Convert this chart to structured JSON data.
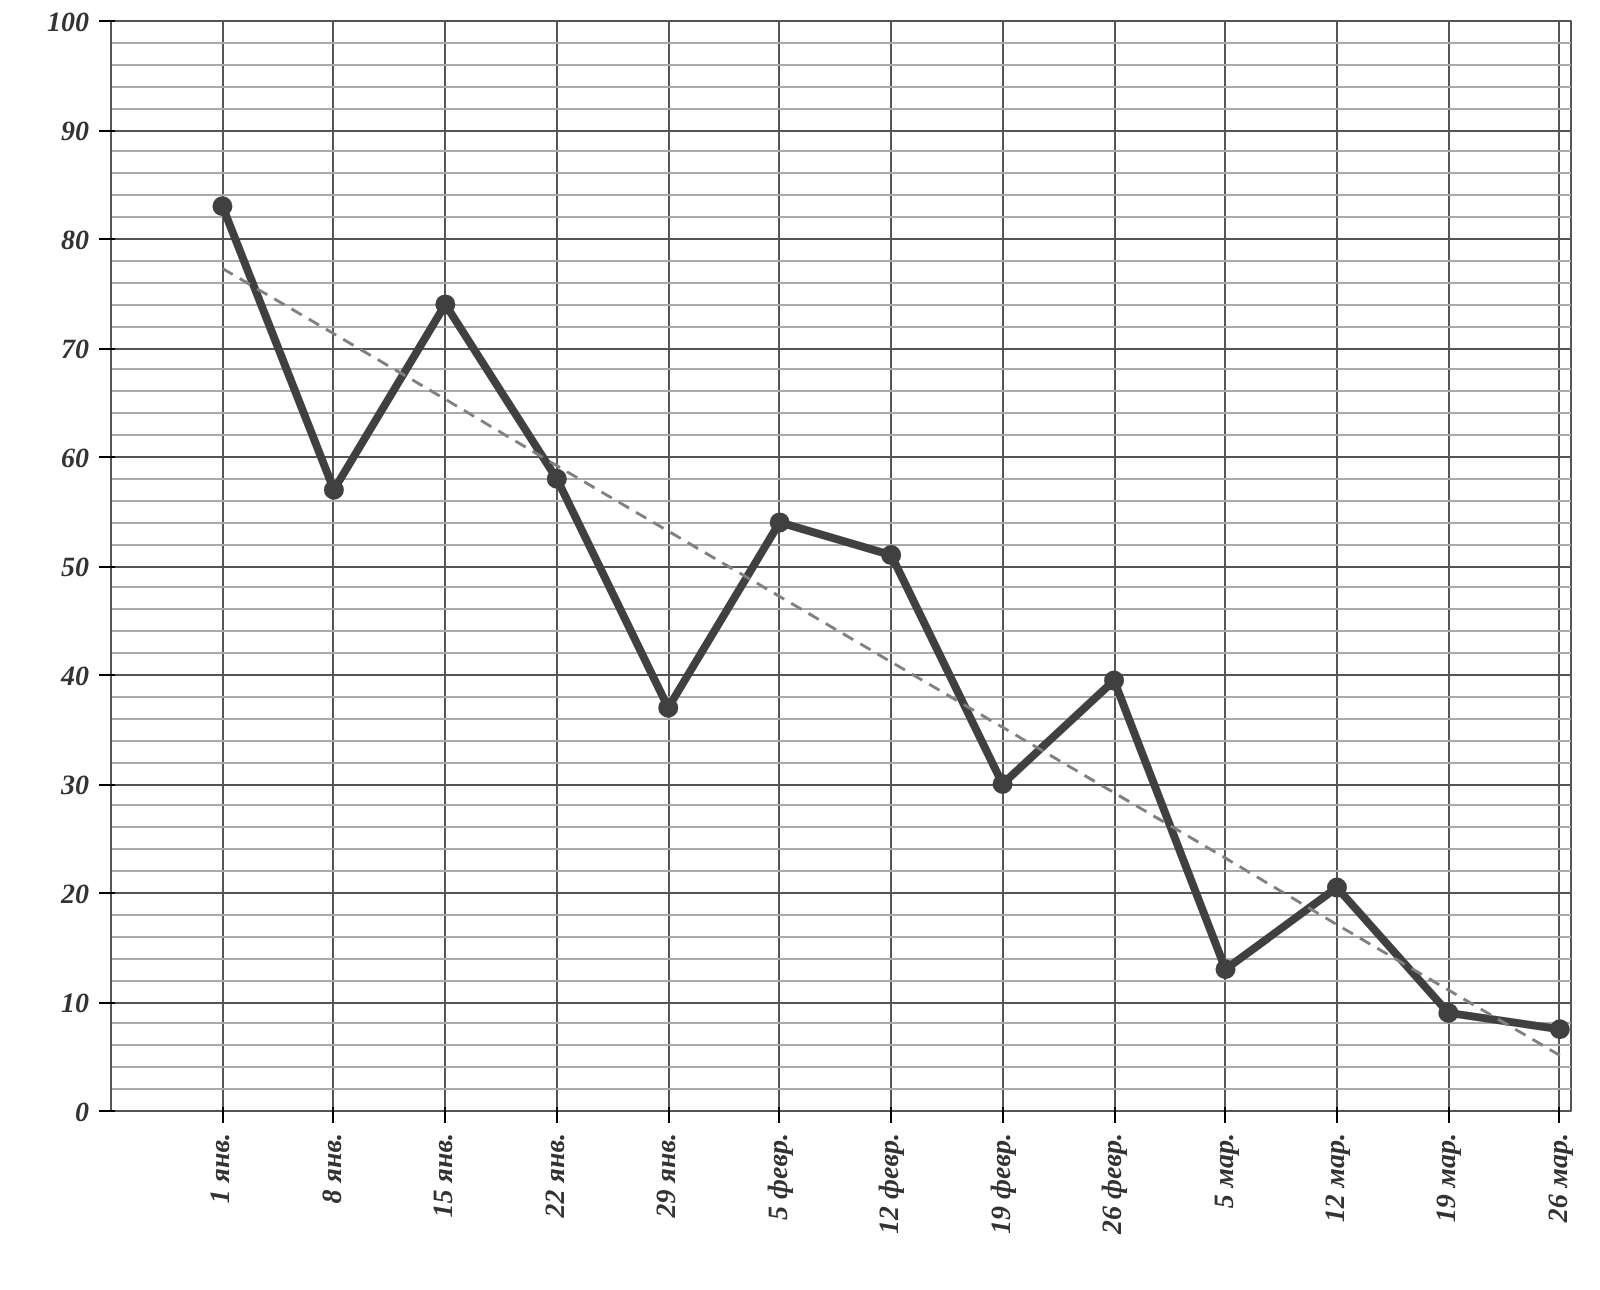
{
  "chart_data": {
    "type": "line",
    "categories": [
      "1 янв.",
      "8 янв.",
      "15 янв.",
      "22 янв.",
      "29 янв.",
      "5 февр.",
      "12 февр.",
      "19 февр.",
      "26 февр.",
      "5 мар.",
      "12 мар.",
      "19 мар.",
      "26 мар."
    ],
    "series": [
      {
        "color": "#404040",
        "values": [
          83,
          57,
          74,
          58,
          37,
          54,
          51,
          30,
          39.5,
          13,
          20.5,
          9,
          7.5
        ]
      },
      {
        "type": "line",
        "color": "#808080",
        "line_style": "dashed",
        "marker": "none",
        "values": [
          77.3,
          71.3,
          65.3,
          59.2,
          53.2,
          47.2,
          41.2,
          35.2,
          29.2,
          23.2,
          17.1,
          11.1,
          5.1
        ]
      }
    ],
    "ylim": [
      0,
      100
    ],
    "yticks": [
      0,
      10,
      20,
      30,
      40,
      50,
      60,
      70,
      80,
      90,
      100
    ],
    "grid": true,
    "marker": "circle",
    "line_style": "solid"
  }
}
